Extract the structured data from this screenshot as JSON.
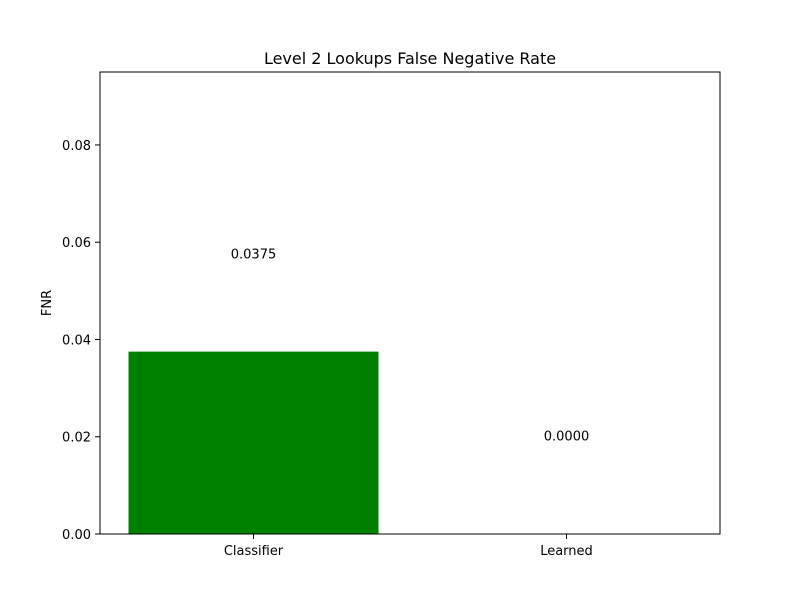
{
  "chart_data": {
    "type": "bar",
    "title": "Level 2 Lookups False Negative Rate",
    "xlabel": "",
    "ylabel": "FNR",
    "categories": [
      "Classifier",
      "Learned"
    ],
    "values": [
      0.0375,
      0.0
    ],
    "value_labels": [
      "0.0375",
      "0.0000"
    ],
    "colors": [
      "#008000",
      "#1f77b4"
    ],
    "ylim": [
      0,
      0.095
    ],
    "yticks": [
      0.0,
      0.02,
      0.04,
      0.06,
      0.08
    ],
    "ytick_labels": [
      "0.00",
      "0.02",
      "0.04",
      "0.06",
      "0.08"
    ],
    "grid": false,
    "legend": "none"
  }
}
